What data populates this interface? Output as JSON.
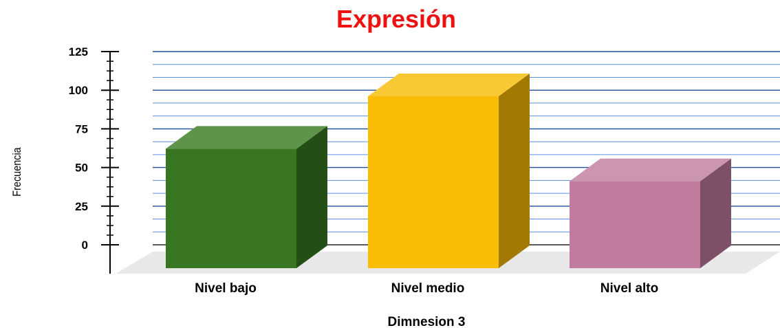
{
  "chart_data": {
    "type": "bar",
    "title": "Expresión",
    "xlabel": "Dimnesion 3",
    "ylabel": "Frecuencia",
    "categories": [
      "Nivel bajo",
      "Nivel medio",
      "Nivel alto"
    ],
    "values": [
      63,
      97,
      42
    ],
    "ylim": [
      0,
      125
    ],
    "yticks": [
      "0",
      "25",
      "50",
      "75",
      "100",
      "125"
    ],
    "grid": true,
    "legend": "none",
    "three_d": true,
    "colors": {
      "title": "#ee1111",
      "grid_major": "#1f4e9c",
      "grid_minor": "#5b8fe0",
      "floor": "#e8e8e8",
      "bars": [
        {
          "front": "#387621",
          "top": "#5e9449",
          "side": "#234f16"
        },
        {
          "front": "#f8bd04",
          "top": "#f9c835",
          "side": "#a27902"
        },
        {
          "front": "#c07c9f",
          "top": "#cc95b2",
          "side": "#7e5068"
        }
      ]
    }
  }
}
